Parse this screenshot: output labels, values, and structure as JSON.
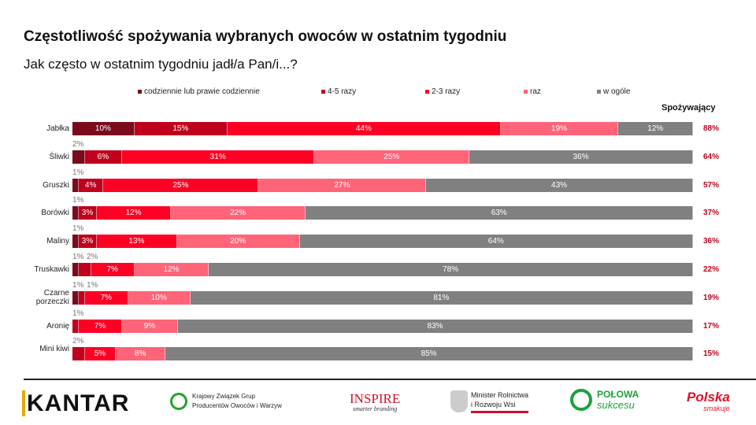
{
  "title": "Częstotliwość spożywania wybranych owoców w ostatnim tygodniu",
  "subtitle": "Jak często w ostatnim tygodniu jadł/a Pan/i...?",
  "chart_data": {
    "type": "bar",
    "orientation": "horizontal-stacked-100",
    "legend_position": "top",
    "grid": false,
    "xlim": [
      0,
      100
    ],
    "categories": [
      "Jabłka",
      "Śliwki",
      "Gruszki",
      "Borówki",
      "Maliny",
      "Truskawki",
      "Czarne porzeczki",
      "Aronię",
      "Mini kiwi"
    ],
    "series": [
      {
        "name": "codziennie lub prawie codziennie",
        "color": "#7a0a1c",
        "values": [
          10,
          2,
          1,
          1,
          1,
          1,
          1,
          0,
          0
        ]
      },
      {
        "name": "4-5 razy",
        "color": "#c0001d",
        "values": [
          15,
          6,
          4,
          3,
          3,
          2,
          1,
          1,
          2
        ]
      },
      {
        "name": "2-3 razy",
        "color": "#ff0025",
        "values": [
          44,
          31,
          25,
          12,
          13,
          7,
          7,
          7,
          5
        ]
      },
      {
        "name": "raz",
        "color": "#ff6479",
        "values": [
          19,
          25,
          27,
          22,
          20,
          12,
          10,
          9,
          8
        ]
      },
      {
        "name": "w ogóle",
        "color": "#808080",
        "values": [
          12,
          36,
          43,
          63,
          64,
          78,
          81,
          83,
          85
        ]
      }
    ],
    "consumers_header": "Spożywający",
    "consumers": [
      "88%",
      "64%",
      "57%",
      "37%",
      "36%",
      "22%",
      "19%",
      "17%",
      "15%"
    ]
  },
  "logos": {
    "kantar": "KANTAR",
    "kzgp": [
      "Krajowy Związek Grup",
      "Producentów Owoców i Warzyw"
    ],
    "inspire": [
      "INSPIRE",
      "smarter branding"
    ],
    "ministry": [
      "Minister Rolnictwa",
      "i Rozwoju Wsi"
    ],
    "polowa": [
      "POŁOWA",
      "sukcesu"
    ],
    "polska": [
      "Polska",
      "smakuje"
    ]
  }
}
